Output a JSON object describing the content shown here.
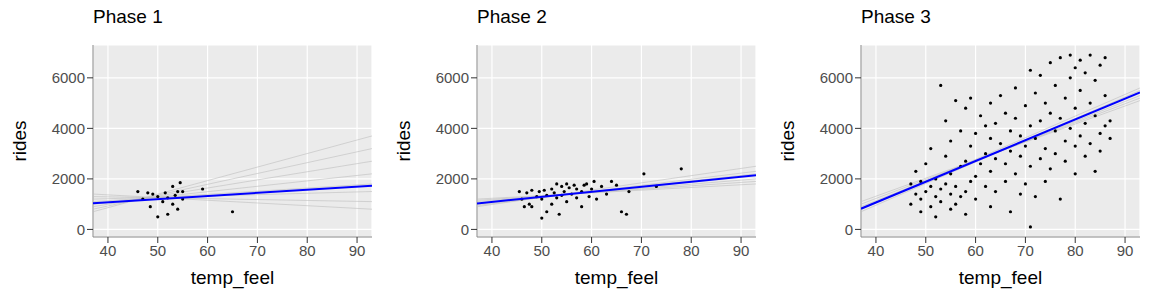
{
  "chart_data": [
    {
      "type": "scatter",
      "title": "Phase 1",
      "x_label": "temp_feel",
      "y_label": "rides",
      "xlim": [
        37,
        93
      ],
      "ylim": [
        -300,
        7300
      ],
      "xticks": [
        40,
        50,
        60,
        70,
        80,
        90
      ],
      "yticks": [
        0,
        2000,
        4000,
        6000
      ],
      "grid": true,
      "series": [
        {
          "type": "line",
          "color": "#bebebe",
          "line_style": "thin",
          "x": [
            37,
            93
          ],
          "values": [
            1400,
            800
          ]
        },
        {
          "type": "line",
          "color": "#bebebe",
          "line_style": "thin",
          "x": [
            37,
            93
          ],
          "values": [
            1300,
            1100
          ]
        },
        {
          "type": "line",
          "color": "#bebebe",
          "line_style": "thin",
          "x": [
            37,
            93
          ],
          "values": [
            1200,
            1500
          ]
        },
        {
          "type": "line",
          "color": "#bebebe",
          "line_style": "thin",
          "x": [
            37,
            93
          ],
          "values": [
            1100,
            1800
          ]
        },
        {
          "type": "line",
          "color": "#bebebe",
          "line_style": "thin",
          "x": [
            37,
            93
          ],
          "values": [
            1000,
            2200
          ]
        },
        {
          "type": "line",
          "color": "#bebebe",
          "line_style": "thin",
          "x": [
            37,
            93
          ],
          "values": [
            900,
            2700
          ]
        },
        {
          "type": "line",
          "color": "#bebebe",
          "line_style": "thin",
          "x": [
            37,
            93
          ],
          "values": [
            800,
            3200
          ]
        },
        {
          "type": "line",
          "color": "#bebebe",
          "line_style": "thin",
          "x": [
            37,
            93
          ],
          "values": [
            700,
            3700
          ]
        },
        {
          "type": "scatter",
          "color": "#000000",
          "marker": "circle",
          "x": [
            46,
            47,
            48,
            48.5,
            49,
            50,
            50,
            51,
            51.5,
            52,
            52,
            53,
            53,
            53.5,
            54,
            54,
            54.5,
            55,
            55,
            59,
            65
          ],
          "values": [
            1500,
            1200,
            1450,
            900,
            1400,
            1300,
            500,
            1100,
            1450,
            600,
            1250,
            1700,
            1000,
            1350,
            1500,
            800,
            1850,
            1200,
            1500,
            1600,
            700
          ]
        },
        {
          "type": "line",
          "color": "#0000ff",
          "line_style": "solid",
          "x": [
            37,
            93
          ],
          "values": [
            1040,
            1730
          ]
        }
      ]
    },
    {
      "type": "scatter",
      "title": "Phase 2",
      "x_label": "temp_feel",
      "y_label": "rides",
      "xlim": [
        37,
        93
      ],
      "ylim": [
        -300,
        7300
      ],
      "xticks": [
        40,
        50,
        60,
        70,
        80,
        90
      ],
      "yticks": [
        0,
        2000,
        4000,
        6000
      ],
      "grid": true,
      "series": [
        {
          "type": "line",
          "color": "#bebebe",
          "line_style": "thin",
          "x": [
            37,
            93
          ],
          "values": [
            1150,
            1900
          ]
        },
        {
          "type": "line",
          "color": "#bebebe",
          "line_style": "thin",
          "x": [
            37,
            93
          ],
          "values": [
            950,
            2300
          ]
        },
        {
          "type": "line",
          "color": "#bebebe",
          "line_style": "thin",
          "x": [
            37,
            93
          ],
          "values": [
            1100,
            2000
          ]
        },
        {
          "type": "line",
          "color": "#bebebe",
          "line_style": "thin",
          "x": [
            37,
            93
          ],
          "values": [
            1000,
            2200
          ]
        },
        {
          "type": "line",
          "color": "#bebebe",
          "line_style": "thin",
          "x": [
            37,
            93
          ],
          "values": [
            1200,
            1800
          ]
        },
        {
          "type": "line",
          "color": "#bebebe",
          "line_style": "thin",
          "x": [
            37,
            93
          ],
          "values": [
            900,
            2500
          ]
        },
        {
          "type": "scatter",
          "color": "#000000",
          "marker": "circle",
          "x": [
            45.5,
            46,
            46.5,
            47,
            47.5,
            48,
            48,
            49,
            49.5,
            50,
            50,
            50.5,
            51,
            51,
            52,
            52,
            52.5,
            53,
            53,
            53.5,
            54,
            54,
            54.5,
            55,
            55,
            55.5,
            56,
            56.5,
            57,
            57,
            58,
            58,
            58.5,
            59,
            59.5,
            60,
            60.5,
            61,
            62,
            63,
            64,
            65,
            66,
            67,
            67.5,
            70.5,
            73,
            78
          ],
          "values": [
            1500,
            1200,
            900,
            1450,
            1000,
            1550,
            900,
            1300,
            1500,
            450,
            1200,
            1550,
            1350,
            700,
            1600,
            1000,
            1450,
            1800,
            1250,
            600,
            1700,
            1350,
            1500,
            1800,
            1100,
            1650,
            1400,
            1750,
            1250,
            1600,
            1500,
            900,
            1750,
            1800,
            1300,
            1600,
            1900,
            1200,
            1700,
            1400,
            1900,
            1750,
            700,
            600,
            1500,
            2200,
            1700,
            2400
          ]
        },
        {
          "type": "line",
          "color": "#0000ff",
          "line_style": "solid",
          "x": [
            37,
            93
          ],
          "values": [
            1030,
            2140
          ]
        }
      ]
    },
    {
      "type": "scatter",
      "title": "Phase 3",
      "x_label": "temp_feel",
      "y_label": "rides",
      "xlim": [
        37,
        93
      ],
      "ylim": [
        -300,
        7300
      ],
      "xticks": [
        40,
        50,
        60,
        70,
        80,
        90
      ],
      "yticks": [
        0,
        2000,
        4000,
        6000
      ],
      "grid": true,
      "series": [
        {
          "type": "line",
          "color": "#bebebe",
          "line_style": "thin",
          "x": [
            37,
            93
          ],
          "values": [
            1000,
            5200
          ]
        },
        {
          "type": "line",
          "color": "#bebebe",
          "line_style": "thin",
          "x": [
            37,
            93
          ],
          "values": [
            800,
            5600
          ]
        },
        {
          "type": "line",
          "color": "#bebebe",
          "line_style": "thin",
          "x": [
            37,
            93
          ],
          "values": [
            1100,
            5100
          ]
        },
        {
          "type": "line",
          "color": "#bebebe",
          "line_style": "thin",
          "x": [
            37,
            93
          ],
          "values": [
            700,
            5500
          ]
        },
        {
          "type": "line",
          "color": "#bebebe",
          "line_style": "thin",
          "x": [
            37,
            93
          ],
          "values": [
            900,
            5300
          ]
        },
        {
          "type": "scatter",
          "color": "#000000",
          "marker": "circle",
          "x": [
            47,
            47,
            48,
            48,
            49,
            49,
            49,
            50,
            50,
            51,
            51,
            51,
            52,
            52,
            52,
            53,
            53,
            53,
            54,
            54,
            54,
            55,
            55,
            55,
            55,
            56,
            56,
            56,
            57,
            57,
            57,
            58,
            58,
            58,
            58,
            59,
            59,
            59,
            60,
            60,
            60,
            61,
            61,
            62,
            62,
            62,
            63,
            63,
            63,
            63,
            64,
            64,
            64,
            65,
            65,
            66,
            66,
            66,
            67,
            67,
            67,
            68,
            68,
            68,
            69,
            69,
            69,
            70,
            70,
            70,
            71,
            71,
            71,
            71,
            72,
            72,
            72,
            73,
            73,
            73,
            74,
            74,
            74,
            75,
            75,
            75,
            76,
            76,
            76,
            77,
            77,
            77,
            78,
            78,
            78,
            79,
            79,
            79,
            80,
            80,
            80,
            80,
            81,
            81,
            81,
            82,
            82,
            82,
            83,
            83,
            83,
            84,
            84,
            84,
            85,
            85,
            85,
            86,
            86,
            86,
            87,
            87
          ],
          "values": [
            1000,
            1800,
            1400,
            2300,
            700,
            1200,
            1900,
            1500,
            2600,
            900,
            1700,
            3200,
            500,
            1300,
            2000,
            1100,
            1600,
            5700,
            1800,
            2900,
            4300,
            800,
            1400,
            2200,
            3500,
            1000,
            1700,
            5100,
            1300,
            2500,
            3900,
            600,
            1500,
            2700,
            4800,
            1900,
            3300,
            5200,
            1200,
            2100,
            3800,
            2600,
            4500,
            1700,
            3000,
            4100,
            900,
            2300,
            3600,
            5000,
            1500,
            2800,
            4200,
            3400,
            5300,
            1900,
            2600,
            4600,
            700,
            3100,
            3900,
            2200,
            4400,
            5600,
            1400,
            2900,
            3700,
            1800,
            3300,
            4900,
            100,
            2500,
            4100,
            6300,
            1300,
            3600,
            5400,
            2800,
            4300,
            6100,
            1900,
            3200,
            5000,
            2400,
            4600,
            6600,
            3000,
            3900,
            5700,
            1200,
            4400,
            6800,
            2700,
            3500,
            5200,
            4000,
            6000,
            6900,
            2200,
            3300,
            4800,
            6400,
            3700,
            5500,
            6700,
            2900,
            4200,
            6200,
            3400,
            5000,
            6900,
            2300,
            4500,
            5900,
            3100,
            3800,
            6500,
            4100,
            5300,
            6800,
            3600,
            4300
          ]
        },
        {
          "type": "line",
          "color": "#0000ff",
          "line_style": "solid",
          "x": [
            37,
            93
          ],
          "values": [
            820,
            5420
          ]
        }
      ]
    }
  ]
}
